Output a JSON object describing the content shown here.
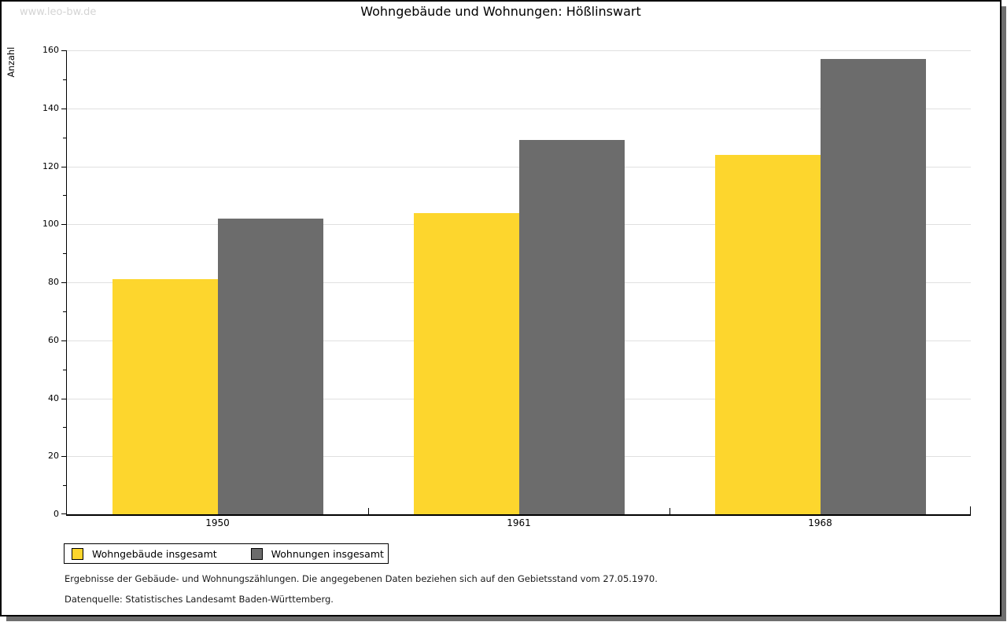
{
  "watermark": "www.leo-bw.de",
  "chart_data": {
    "type": "bar",
    "title": "Wohngebäude und Wohnungen: Hößlinswart",
    "xlabel": "",
    "ylabel": "Anzahl",
    "categories": [
      "1950",
      "1961",
      "1968"
    ],
    "series": [
      {
        "name": "Wohngebäude insgesamt",
        "color": "#FDD62D",
        "values": [
          81,
          104,
          124
        ]
      },
      {
        "name": "Wohnungen insgesamt",
        "color": "#6C6C6C",
        "values": [
          102,
          129,
          157
        ]
      }
    ],
    "ylim": [
      0,
      160
    ],
    "ytick_step": 20,
    "yminor_step": 10,
    "grid": true,
    "legend_position": "bottom-left"
  },
  "notes": {
    "line1": "Ergebnisse der Gebäude- und Wohnungszählungen. Die angegebenen Daten beziehen sich auf den Gebietsstand vom 27.05.1970.",
    "line2": "Datenquelle: Statistisches Landesamt Baden-Württemberg."
  },
  "style_colors": {
    "bar_yellow": "#FDD62D",
    "bar_gray": "#6C6C6C",
    "gridline": "#e0e0e0",
    "axis": "#000000",
    "watermark": "#d4d4d4",
    "page_border": "#000000",
    "page_shadow": "#6e6e6e"
  }
}
